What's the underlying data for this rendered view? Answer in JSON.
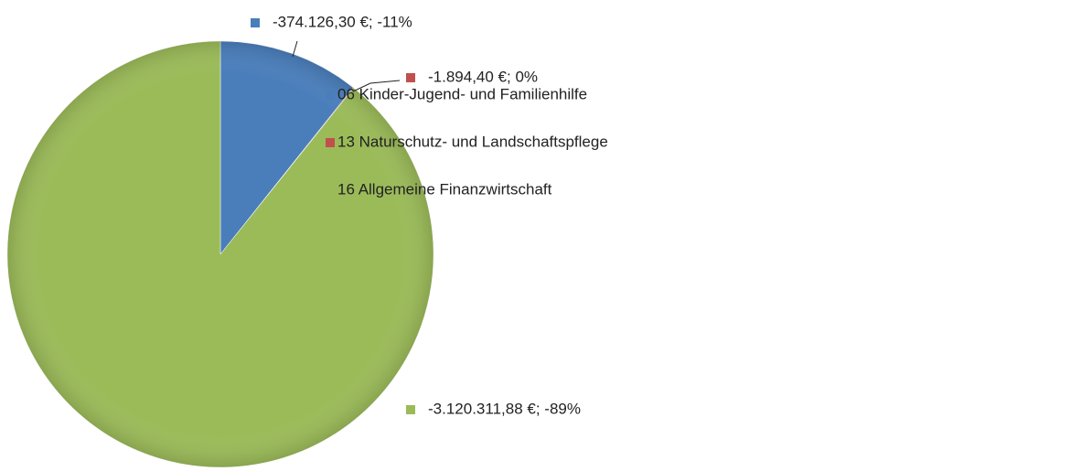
{
  "chart_data": {
    "type": "pie",
    "categories": [
      "06 Kinder-Jugend- und Familienhilfe",
      "13 Naturschutz- und Landschaftspflege",
      "16 Allgemeine Finanzwirtschaft"
    ],
    "values": [
      -374126.3,
      -1894.4,
      -3120311.88
    ],
    "value_labels": [
      "-374.126,30 €; -11%",
      "-1.894,40 €; 0%",
      "-3.120.311,88 €; -89%"
    ],
    "colors": [
      "#4a7ebb",
      "#c0504d",
      "#9bbb59"
    ]
  }
}
